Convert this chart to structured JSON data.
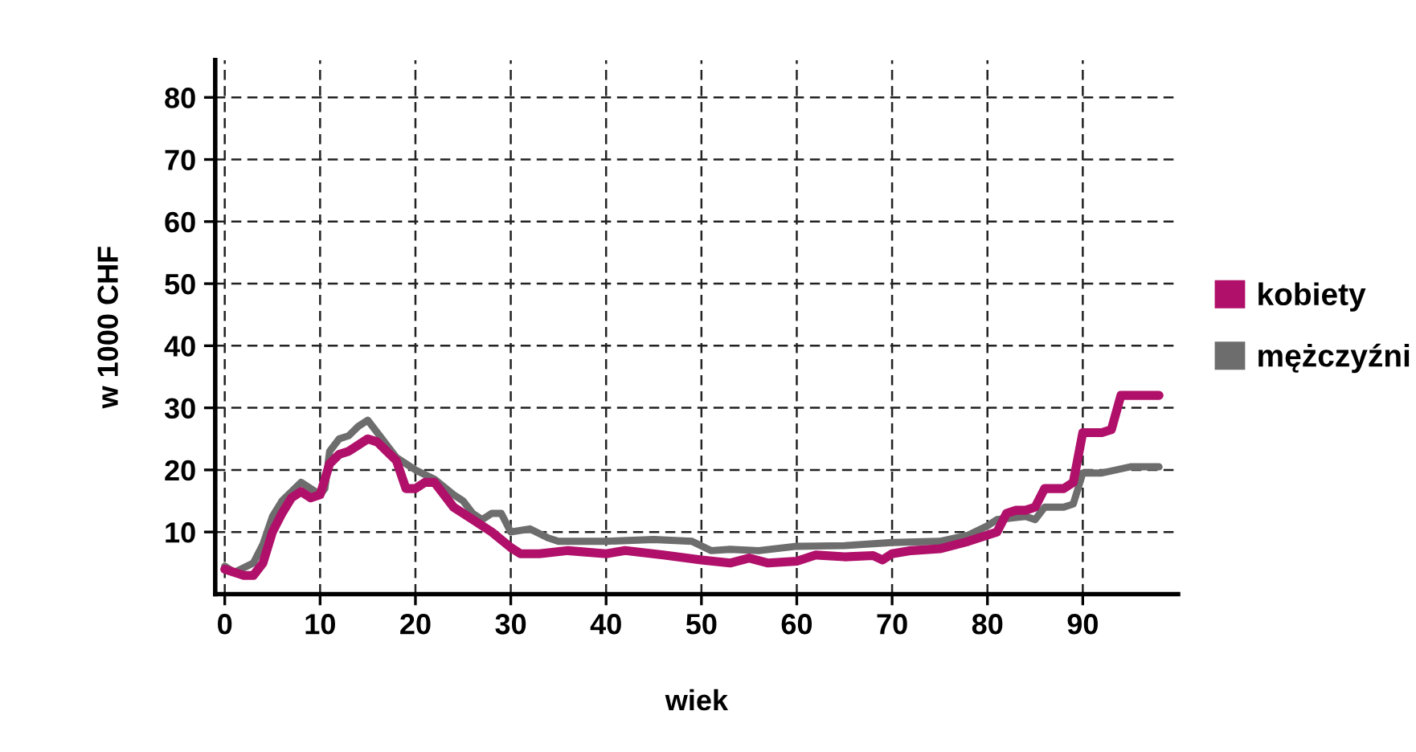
{
  "chart_data": {
    "type": "line",
    "xlabel": "wiek",
    "ylabel": "w 1000 CHF",
    "xlim": [
      -1,
      100
    ],
    "ylim": [
      0,
      86
    ],
    "xticks": [
      0,
      10,
      20,
      30,
      40,
      50,
      60,
      70,
      80,
      90
    ],
    "yticks": [
      10,
      20,
      30,
      40,
      50,
      60,
      70,
      80
    ],
    "grid": true,
    "legend": "right",
    "marker": "none",
    "line_style": "solid",
    "series": [
      {
        "name": "kobiety",
        "color": "#b0106a",
        "x": [
          0,
          2,
          3,
          4,
          5,
          6,
          7,
          8,
          9,
          10,
          11,
          12,
          13,
          14,
          15,
          16,
          17,
          18,
          19,
          20,
          21,
          22,
          23,
          24,
          26,
          28,
          30,
          31,
          33,
          36,
          40,
          42,
          46,
          50,
          53,
          55,
          57,
          60,
          62,
          65,
          68,
          69,
          70,
          72,
          75,
          78,
          80,
          81,
          82,
          83,
          84,
          85,
          86,
          87,
          88,
          89,
          90,
          91,
          92,
          93,
          94,
          95,
          98
        ],
        "values": [
          4,
          3,
          3,
          5,
          10,
          13,
          15.5,
          16.5,
          15.5,
          16,
          21,
          22.5,
          23,
          24,
          25,
          24.5,
          23,
          21.5,
          17,
          17,
          18,
          18,
          16,
          14,
          12,
          10,
          7.5,
          6.5,
          6.5,
          7,
          6.5,
          7,
          6.3,
          5.5,
          5,
          5.8,
          5,
          5.3,
          6.3,
          6,
          6.2,
          5.5,
          6.5,
          7,
          7.3,
          8.5,
          9.5,
          10,
          13,
          13.5,
          13.5,
          14,
          17,
          17,
          17,
          18,
          26,
          26,
          26,
          26.5,
          32,
          32,
          32
        ]
      },
      {
        "name": "mężczyźni",
        "color": "#6d6d6d",
        "x": [
          0,
          1,
          3,
          4,
          5,
          6,
          8,
          9,
          10,
          10.5,
          11,
          12,
          13,
          14,
          15,
          16,
          18,
          20,
          22,
          24,
          25,
          26,
          27,
          28,
          29,
          30,
          32,
          34,
          35,
          40,
          45,
          49,
          51,
          53,
          56,
          60,
          65,
          70,
          75,
          78,
          80,
          81,
          84,
          85,
          86,
          88,
          89,
          90,
          92,
          95,
          98
        ],
        "values": [
          4.5,
          3.5,
          5,
          8,
          12.5,
          15,
          18,
          17,
          16,
          17,
          23,
          25,
          25.5,
          27,
          28,
          26,
          22,
          20,
          18.5,
          16,
          15,
          13,
          12,
          13,
          13,
          10,
          10.5,
          9,
          8.5,
          8.5,
          8.8,
          8.5,
          7,
          7.2,
          7,
          7.7,
          7.8,
          8.3,
          8.5,
          9.5,
          11,
          12,
          12.5,
          12,
          14,
          14,
          14.5,
          19.5,
          19.5,
          20.5,
          20.5
        ]
      }
    ]
  }
}
